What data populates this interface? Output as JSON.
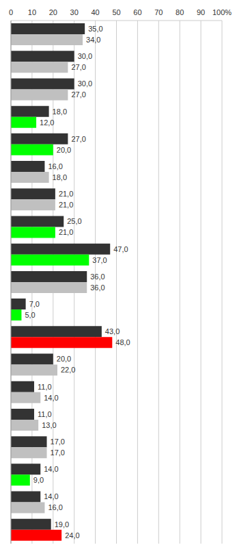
{
  "chart_data": {
    "type": "bar",
    "orientation": "horizontal",
    "grid": true,
    "data_labels": true,
    "tick_labels": "x",
    "categories": [
      null,
      null,
      null,
      null,
      null,
      null,
      null,
      null,
      null,
      null,
      null,
      null,
      null,
      null,
      null,
      null,
      null,
      null,
      null
    ],
    "xlim": [
      0,
      100
    ],
    "xticks": [
      0,
      10,
      20,
      30,
      40,
      50,
      60,
      70,
      80,
      90,
      {
        "value": 100,
        "label": "100%"
      }
    ],
    "series": [
      {
        "color": "#333333",
        "values": [
          35,
          30,
          30,
          18,
          27,
          16,
          21,
          25,
          47,
          36,
          7,
          43,
          20,
          11,
          11,
          17,
          14,
          14,
          19
        ],
        "value_labels": [
          "35,0",
          "30,0",
          "30,0",
          "18,0",
          "27,0",
          "16,0",
          "21,0",
          "25,0",
          "47,0",
          "36,0",
          "7,0",
          "43,0",
          "20,0",
          "11,0",
          "11,0",
          "17,0",
          "14,0",
          "14,0",
          "19,0"
        ]
      },
      {
        "colors": [
          "#c0c0c0",
          "#c0c0c0",
          "#c0c0c0",
          "#00ff00",
          "#00ff00",
          "#c0c0c0",
          "#c0c0c0",
          "#00ff00",
          "#00ff00",
          "#c0c0c0",
          "#00ff00",
          "#ff0000",
          "#c0c0c0",
          "#c0c0c0",
          "#c0c0c0",
          "#c0c0c0",
          "#00ff00",
          "#c0c0c0",
          "#ff0000"
        ],
        "values": [
          34,
          27,
          27,
          12,
          20,
          18,
          21,
          21,
          37,
          36,
          5,
          48,
          22,
          14,
          13,
          17,
          9,
          16,
          24
        ],
        "value_labels": [
          "34,0",
          "27,0",
          "27,0",
          "12,0",
          "20,0",
          "18,0",
          "21,0",
          "21,0",
          "37,0",
          "36,0",
          "5,0",
          "48,0",
          "22,0",
          "14,0",
          "13,0",
          "17,0",
          "9,0",
          "16,0",
          "24,0"
        ]
      }
    ]
  }
}
